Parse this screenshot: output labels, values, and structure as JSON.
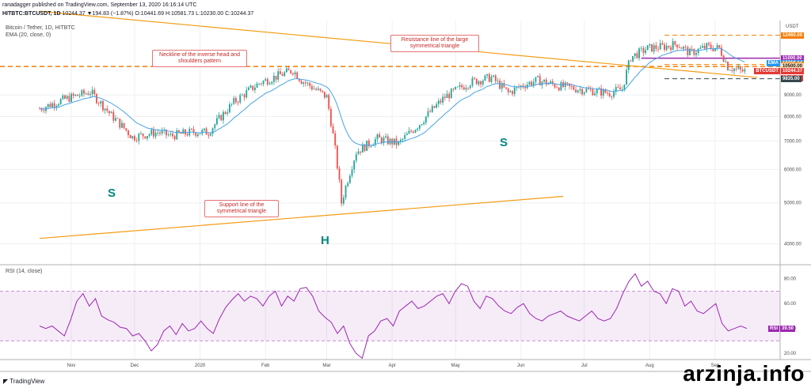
{
  "header": {
    "publisher": "ranadagger published on TradingView.com, September 13, 2020 16:16:14 UTC",
    "symbol": "HITBTC:BTCUSDT, 1D",
    "ohlc": "10244.37  ▼194.83 (−1.87%)  O:10441.69  H:10581.73  L:10230.00  C:10244.37",
    "title": "Bitcoin / Tether, 1D, HITBTC",
    "ema": "EMA (20, close, 0)",
    "rsi": "RSI (14, close)"
  },
  "annotations": [
    {
      "text": "Neckline of the inverse head and shoulders pattern"
    },
    {
      "text": "Resistance line of the large symmetrical triangle"
    },
    {
      "text": "Support line of the symmetrical triangle"
    }
  ],
  "pattern_labels": [
    "S",
    "H",
    "S"
  ],
  "price_labels": [
    {
      "text": "12460.00",
      "bg": "#f57c00",
      "fg": "#ffffff"
    },
    {
      "text": "11000.00",
      "bg": "#9c27b0",
      "fg": "#ffffff"
    },
    {
      "text": "10719.64",
      "bg": "#2196f3",
      "fg": "#ffffff",
      "tag": "EMA"
    },
    {
      "text": "10625.00",
      "bg": "#f57c00",
      "fg": "#ffffff"
    },
    {
      "text": "10500.00",
      "bg": "#ffe0b2",
      "fg": "#131722"
    },
    {
      "text": "10244.37",
      "bg": "#e53935",
      "fg": "#ffffff",
      "tag": "BTCUSDT"
    },
    {
      "text": "07:43:51",
      "bg": "#e53935",
      "fg": "#ffffff"
    },
    {
      "text": "9835.00",
      "bg": "#37474f",
      "fg": "#ffffff"
    }
  ],
  "rsi_label": {
    "tag": "RSI",
    "value": "39.50",
    "color": "#9c27b0"
  },
  "footer": {
    "brand": "TradingView",
    "watermark": "arzinja.info"
  },
  "chart_data": [
    {
      "type": "candlestick",
      "currency": "USDT",
      "y_scale": "log",
      "ylim": [
        3600,
        13500
      ],
      "y_ticks": [
        4000,
        5000,
        6000,
        7000,
        8000,
        9000
      ],
      "x_labels": [
        "Nov",
        "Dec",
        "2020",
        "Feb",
        "Mar",
        "Apr",
        "May",
        "Jun",
        "Jul",
        "Aug",
        "Sep"
      ],
      "x_domain": [
        0,
        320
      ],
      "x_label_pos": [
        15,
        45,
        76,
        107,
        136,
        167,
        197,
        228,
        258,
        289,
        320
      ],
      "path": [
        [
          0,
          8350
        ],
        [
          12,
          8800
        ],
        [
          24,
          9150
        ],
        [
          34,
          8050
        ],
        [
          44,
          7150
        ],
        [
          56,
          7350
        ],
        [
          62,
          7200
        ],
        [
          72,
          7350
        ],
        [
          80,
          7350
        ],
        [
          92,
          8650
        ],
        [
          104,
          9600
        ],
        [
          112,
          9950
        ],
        [
          120,
          10300
        ],
        [
          124,
          9750
        ],
        [
          136,
          8900
        ],
        [
          143,
          5000
        ],
        [
          150,
          6600
        ],
        [
          160,
          7100
        ],
        [
          170,
          6900
        ],
        [
          180,
          7700
        ],
        [
          192,
          8900
        ],
        [
          204,
          9650
        ],
        [
          214,
          9900
        ],
        [
          222,
          9100
        ],
        [
          229,
          9500
        ],
        [
          236,
          9750
        ],
        [
          246,
          9450
        ],
        [
          258,
          9250
        ],
        [
          270,
          9100
        ],
        [
          276,
          9300
        ],
        [
          280,
          11050
        ],
        [
          288,
          11600
        ],
        [
          298,
          11750
        ],
        [
          302,
          11900
        ],
        [
          308,
          11300
        ],
        [
          316,
          11700
        ],
        [
          322,
          11600
        ],
        [
          326,
          10500
        ],
        [
          332,
          10250
        ],
        [
          335,
          10244
        ]
      ],
      "series": [
        {
          "name": "EMA",
          "values": [
            10719.64
          ]
        }
      ],
      "horizontal_levels": [
        12460,
        11000,
        10625,
        10500,
        9835
      ],
      "trendlines": [
        {
          "name": "Resistance line of the large symmetrical triangle",
          "from": [
            0,
            14200
          ],
          "to": [
            340,
            9900
          ]
        },
        {
          "name": "Support line of the symmetrical triangle",
          "from": [
            0,
            4120
          ],
          "to": [
            248,
            5180
          ]
        }
      ],
      "neckline": 10500
    },
    {
      "type": "line",
      "name": "RSI",
      "ylim": [
        15,
        90
      ],
      "y_ticks": [
        20,
        40,
        60,
        80
      ],
      "band": [
        30,
        70
      ],
      "values": [
        42,
        40,
        42,
        38,
        34,
        47,
        62,
        68,
        58,
        64,
        50,
        47,
        45,
        41,
        40,
        34,
        36,
        30,
        22,
        27,
        38,
        42,
        35,
        44,
        38,
        40,
        46,
        40,
        36,
        48,
        57,
        63,
        68,
        62,
        66,
        64,
        58,
        66,
        70,
        58,
        66,
        62,
        72,
        73,
        66,
        54,
        49,
        45,
        36,
        42,
        28,
        20,
        16,
        34,
        38,
        46,
        48,
        42,
        54,
        58,
        62,
        56,
        58,
        62,
        66,
        68,
        60,
        70,
        76,
        74,
        62,
        56,
        66,
        64,
        58,
        54,
        52,
        57,
        60,
        52,
        48,
        46,
        50,
        52,
        54,
        50,
        48,
        46,
        50,
        54,
        48,
        46,
        48,
        56,
        68,
        78,
        84,
        74,
        78,
        70,
        68,
        60,
        72,
        70,
        58,
        62,
        54,
        52,
        56,
        60,
        44,
        38,
        40,
        42,
        40
      ]
    }
  ]
}
